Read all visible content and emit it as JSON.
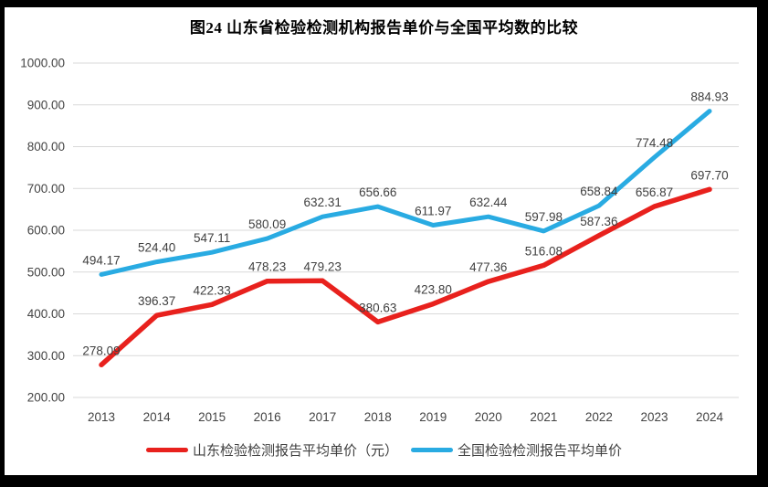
{
  "chart_data": {
    "type": "line",
    "title": "图24  山东省检验检测机构报告单价与全国平均数的比较",
    "x": [
      "2013",
      "2014",
      "2015",
      "2016",
      "2017",
      "2018",
      "2019",
      "2020",
      "2021",
      "2022",
      "2023",
      "2024"
    ],
    "series": [
      {
        "name": "山东检验检测报告平均单价（元）",
        "color": "#e8211d",
        "values": [
          278.09,
          396.37,
          422.33,
          478.23,
          479.23,
          380.63,
          423.8,
          477.36,
          516.08,
          587.36,
          656.87,
          697.7
        ]
      },
      {
        "name": "全国检验检测报告平均单价",
        "color": "#29abe2",
        "values": [
          494.17,
          524.4,
          547.11,
          580.09,
          632.31,
          656.66,
          611.97,
          632.44,
          597.98,
          658.84,
          774.48,
          884.93
        ]
      }
    ],
    "ylim": [
      200,
      1000
    ],
    "ytick_step": 100,
    "ytick_decimals": 2,
    "value_label_decimals": 2,
    "grid": true,
    "legend_position": "bottom",
    "colors": {
      "grid": "#d9d9d9",
      "axis_text": "#444444",
      "label_text": "#404040",
      "title_text": "#000000",
      "plot_background": "#ffffff",
      "frame": "#000000"
    }
  }
}
